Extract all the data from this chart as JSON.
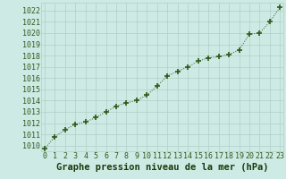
{
  "x": [
    0,
    1,
    2,
    3,
    4,
    5,
    6,
    7,
    8,
    9,
    10,
    11,
    12,
    13,
    14,
    15,
    16,
    17,
    18,
    19,
    20,
    21,
    22,
    23
  ],
  "y": [
    1009.7,
    1010.8,
    1011.4,
    1011.9,
    1012.1,
    1012.5,
    1013.0,
    1013.5,
    1013.8,
    1014.0,
    1014.5,
    1015.3,
    1016.2,
    1016.6,
    1017.0,
    1017.5,
    1017.8,
    1017.9,
    1018.1,
    1018.5,
    1019.9,
    1020.0,
    1021.0,
    1022.3
  ],
  "ylim": [
    1009.5,
    1022.7
  ],
  "yticks": [
    1010,
    1011,
    1012,
    1013,
    1014,
    1015,
    1016,
    1017,
    1018,
    1019,
    1020,
    1021,
    1022
  ],
  "xticks": [
    0,
    1,
    2,
    3,
    4,
    5,
    6,
    7,
    8,
    9,
    10,
    11,
    12,
    13,
    14,
    15,
    16,
    17,
    18,
    19,
    20,
    21,
    22,
    23
  ],
  "xlabel": "Graphe pression niveau de la mer (hPa)",
  "line_color": "#2d5a1b",
  "marker_color": "#2d5a1b",
  "bg_color": "#ceeae4",
  "grid_color": "#b0cec8",
  "tick_label_color": "#2d5a1b",
  "xlabel_color": "#1a3a0a",
  "xlabel_fontsize": 7.5,
  "tick_fontsize": 6.0
}
